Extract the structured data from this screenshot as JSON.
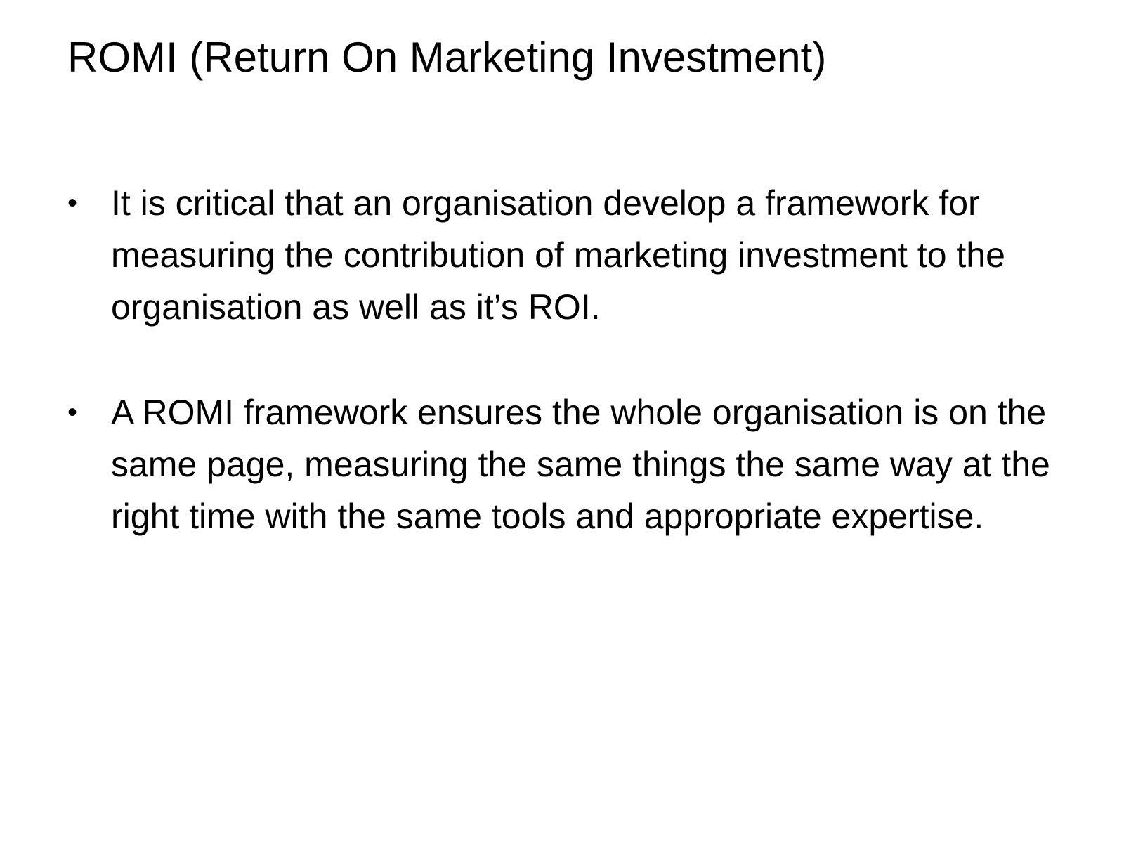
{
  "slide": {
    "title": "ROMI (Return On Marketing Investment)",
    "bullet_symbol": "•",
    "bullets": [
      {
        "text": "It is critical that an organisation develop a framework for measuring the contribution of marketing investment to the organisation as well as it’s ROI."
      },
      {
        "text": "A ROMI framework ensures the whole organisation is on the same page, measuring the same things the same way at the right time with the same tools and appropriate expertise."
      }
    ]
  }
}
